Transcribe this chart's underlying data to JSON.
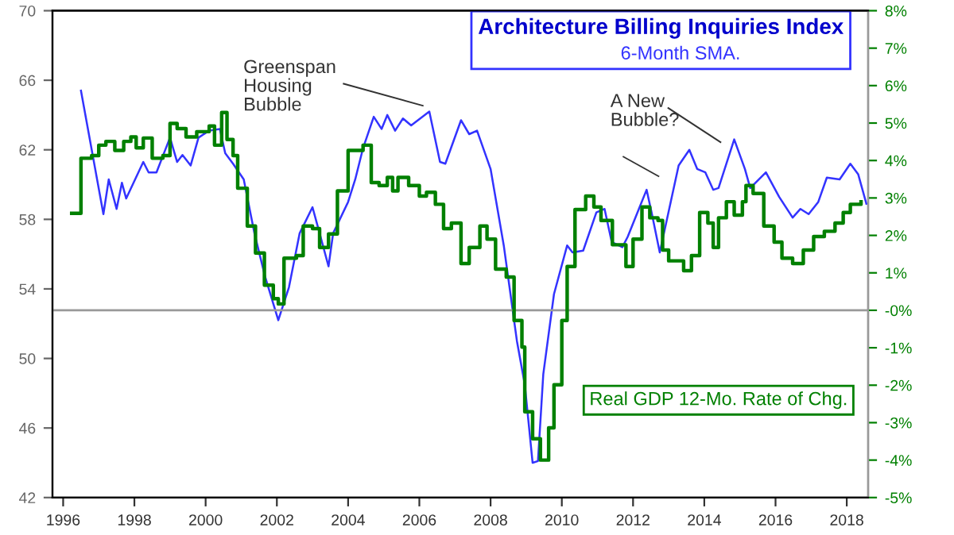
{
  "chart_data": {
    "type": "line",
    "title": "Architecture Billing Inquiries Index",
    "subtitle": "6-Month SMA.",
    "xlim": [
      1995.7,
      2018.6
    ],
    "xticks": [
      1996,
      1998,
      2000,
      2002,
      2004,
      2006,
      2008,
      2010,
      2012,
      2014,
      2016,
      2018
    ],
    "ylim": [
      42,
      70
    ],
    "yticks": [
      42,
      46,
      50,
      54,
      58,
      62,
      66,
      70
    ],
    "y2lim": [
      -5,
      8
    ],
    "y2ticks": [
      {
        "value": -5,
        "label": "-5%"
      },
      {
        "value": -4,
        "label": "-4%"
      },
      {
        "value": -3,
        "label": "-3%"
      },
      {
        "value": -2,
        "label": "-2%"
      },
      {
        "value": -1,
        "label": "-1%"
      },
      {
        "value": 0,
        "label": "-0%"
      },
      {
        "value": 1,
        "label": "1%"
      },
      {
        "value": 2,
        "label": "2%"
      },
      {
        "value": 3,
        "label": "3%"
      },
      {
        "value": 4,
        "label": "4%"
      },
      {
        "value": 5,
        "label": "5%"
      },
      {
        "value": 6,
        "label": "6%"
      },
      {
        "value": 7,
        "label": "7%"
      },
      {
        "value": 8,
        "label": "8%"
      }
    ],
    "grid": false,
    "legend": false,
    "ref_lines": [
      {
        "axis": "y2",
        "value": 0,
        "color": "#999999"
      }
    ],
    "annotations": [
      "Greenspan\nHousing\nBubble",
      "A New\nBubble?"
    ],
    "series": [
      {
        "color": "#3333ff",
        "x": [
          1996.5,
          1997.13,
          1997.28,
          1997.5,
          1997.65,
          1997.77,
          1998.25,
          1998.4,
          1998.62,
          1999.0,
          1999.2,
          1999.35,
          1999.58,
          1999.8,
          2000.1,
          2000.4,
          2000.55,
          2000.77,
          2001.07,
          2001.37,
          2001.67,
          2002.04,
          2002.34,
          2002.64,
          2003.0,
          2003.2,
          2003.45,
          2003.58,
          2004.0,
          2004.2,
          2004.42,
          2004.72,
          2004.94,
          2005.1,
          2005.32,
          2005.54,
          2005.77,
          2006.28,
          2006.58,
          2006.73,
          2007.17,
          2007.4,
          2007.62,
          2008.0,
          2008.37,
          2008.74,
          2008.96,
          2009.18,
          2009.33,
          2009.48,
          2009.78,
          2010.15,
          2010.3,
          2010.6,
          2010.97,
          2011.2,
          2011.4,
          2011.7,
          2011.85,
          2012.38,
          2012.52,
          2012.75,
          2013.28,
          2013.58,
          2013.8,
          2014.03,
          2014.25,
          2014.4,
          2014.84,
          2015.14,
          2015.29,
          2015.73,
          2016.1,
          2016.48,
          2016.7,
          2016.93,
          2017.2,
          2017.44,
          2017.8,
          2018.1,
          2018.32,
          2018.55
        ],
        "values": [
          65.4,
          58.3,
          60.3,
          58.6,
          60.1,
          59.2,
          61.3,
          60.7,
          60.7,
          62.7,
          61.3,
          61.7,
          61.1,
          62.7,
          63.1,
          63.2,
          61.8,
          61.2,
          60.3,
          57.2,
          54.7,
          52.2,
          54.1,
          57.2,
          58.7,
          57.2,
          55.3,
          57.2,
          59.0,
          60.3,
          62.1,
          63.9,
          63.2,
          64.0,
          63.1,
          63.8,
          63.4,
          64.2,
          61.3,
          61.2,
          63.7,
          62.9,
          63.1,
          60.9,
          56.5,
          51.0,
          48.5,
          44.0,
          44.1,
          49.1,
          53.7,
          56.5,
          56.1,
          56.2,
          58.4,
          58.6,
          56.7,
          56.4,
          57.0,
          59.7,
          58.4,
          56.1,
          61.1,
          62.0,
          60.9,
          60.7,
          59.7,
          59.8,
          62.6,
          60.9,
          59.8,
          60.7,
          59.3,
          58.1,
          58.6,
          58.3,
          59.0,
          60.4,
          60.3,
          61.2,
          60.6,
          58.9
        ]
      },
      {
        "type": "step",
        "axis": "y2",
        "name": "Real GDP 12-Mo. Rate of Chg.",
        "color": "#008000",
        "x": [
          1996.24,
          1996.5,
          1996.8,
          1997.0,
          1997.2,
          1997.45,
          1997.7,
          1997.9,
          1998.05,
          1998.25,
          1998.5,
          1998.8,
          1999.0,
          1999.2,
          1999.45,
          1999.75,
          2000.1,
          2000.25,
          2000.45,
          2000.6,
          2000.77,
          2000.9,
          2001.17,
          2001.4,
          2001.65,
          2001.9,
          2002.04,
          2002.2,
          2002.55,
          2002.74,
          2003.0,
          2003.2,
          2003.45,
          2003.7,
          2004.0,
          2004.42,
          2004.65,
          2004.87,
          2005.1,
          2005.25,
          2005.4,
          2005.7,
          2006.0,
          2006.2,
          2006.45,
          2006.68,
          2006.9,
          2007.17,
          2007.4,
          2007.7,
          2007.9,
          2008.14,
          2008.44,
          2008.66,
          2008.88,
          2008.96,
          2009.18,
          2009.4,
          2009.63,
          2009.78,
          2010.0,
          2010.15,
          2010.37,
          2010.67,
          2010.9,
          2011.1,
          2011.42,
          2011.8,
          2012.0,
          2012.25,
          2012.47,
          2012.7,
          2012.83,
          2013.0,
          2013.42,
          2013.64,
          2013.87,
          2014.1,
          2014.25,
          2014.4,
          2014.62,
          2014.84,
          2015.07,
          2015.17,
          2015.37,
          2015.67,
          2015.96,
          2016.18,
          2016.48,
          2016.78,
          2017.07,
          2017.37,
          2017.67,
          2017.9,
          2018.1,
          2018.4
        ],
        "values": [
          2.59,
          4.06,
          4.13,
          4.41,
          4.51,
          4.27,
          4.51,
          4.63,
          4.34,
          4.6,
          4.06,
          4.13,
          4.99,
          4.85,
          4.63,
          4.77,
          4.92,
          4.41,
          5.28,
          4.56,
          4.13,
          3.26,
          2.25,
          1.53,
          0.67,
          0.31,
          0.17,
          1.39,
          1.46,
          2.25,
          2.18,
          1.68,
          2.04,
          3.19,
          4.27,
          4.41,
          3.41,
          3.33,
          3.55,
          3.19,
          3.55,
          3.33,
          3.05,
          3.15,
          2.83,
          2.18,
          2.33,
          1.25,
          1.68,
          2.25,
          1.9,
          1.1,
          0.89,
          -0.27,
          -0.98,
          -2.71,
          -3.43,
          -4.0,
          -3.14,
          -1.99,
          -0.27,
          1.17,
          2.69,
          3.05,
          2.76,
          2.4,
          1.75,
          1.17,
          1.9,
          2.76,
          2.47,
          2.4,
          1.61,
          1.32,
          1.06,
          1.46,
          2.61,
          2.33,
          1.68,
          2.47,
          2.9,
          2.54,
          2.9,
          3.33,
          3.12,
          2.25,
          1.82,
          1.39,
          1.25,
          1.61,
          1.97,
          2.11,
          2.33,
          2.61,
          2.83,
          2.9
        ]
      }
    ]
  }
}
